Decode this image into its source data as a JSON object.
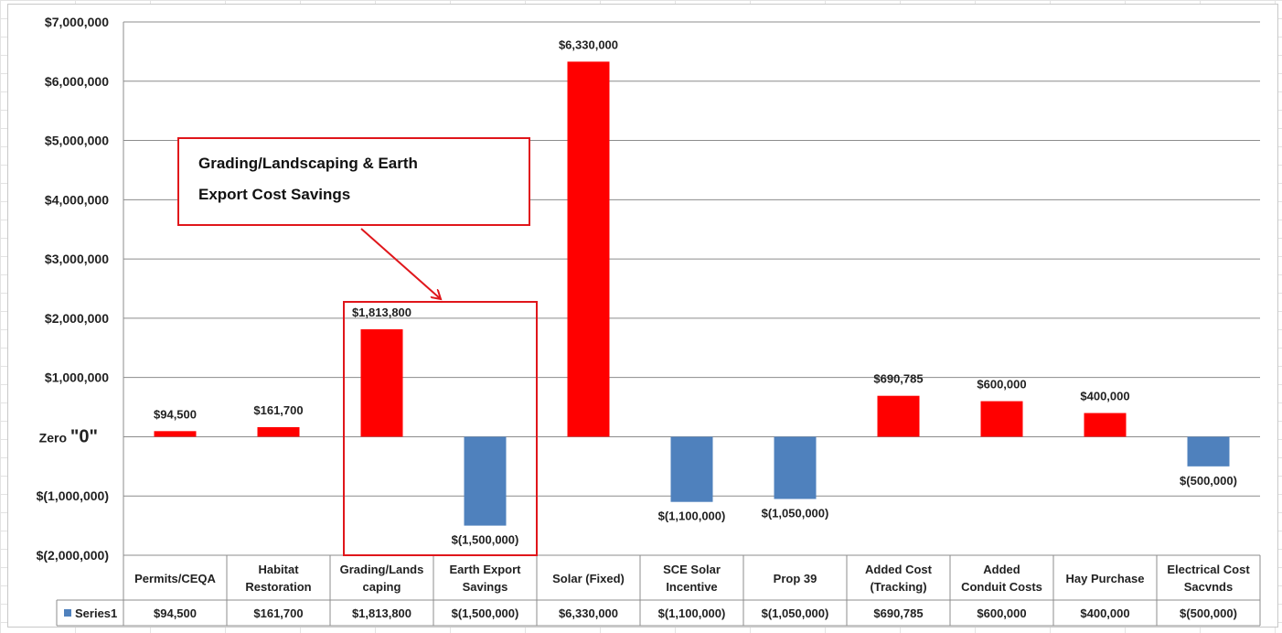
{
  "chart_data": {
    "type": "bar",
    "categories": [
      "Permits/CEQA",
      "Habitat Restoration",
      "Grading/Landscaping",
      "Earth Export Savings",
      "Solar (Fixed)",
      "SCE Solar Incentive",
      "Prop 39",
      "Added Cost (Tracking)",
      "Added Conduit Costs",
      "Hay Purchase",
      "Electrical Cost Sacvnds"
    ],
    "category_label_lines": [
      [
        "Permits/CEQA"
      ],
      [
        "Habitat",
        "Restoration"
      ],
      [
        "Grading/Lands",
        "caping"
      ],
      [
        "Earth Export",
        "Savings"
      ],
      [
        "Solar (Fixed)"
      ],
      [
        "SCE Solar",
        "Incentive"
      ],
      [
        "Prop 39"
      ],
      [
        "Added Cost",
        "(Tracking)"
      ],
      [
        "Added",
        "Conduit Costs"
      ],
      [
        "Hay Purchase"
      ],
      [
        "Electrical Cost",
        "Sacvnds"
      ]
    ],
    "series": [
      {
        "name": "Series1",
        "values": [
          94500,
          161700,
          1813800,
          -1500000,
          6330000,
          -1100000,
          -1050000,
          690785,
          600000,
          400000,
          -500000
        ]
      }
    ],
    "data_labels": [
      "$94,500",
      "$161,700",
      "$1,813,800",
      "$(1,500,000)",
      "$6,330,000",
      "$(1,100,000)",
      "$(1,050,000)",
      "$690,785",
      "$600,000",
      "$400,000",
      "$(500,000)"
    ],
    "ylim": [
      -2000000,
      7000000
    ],
    "yticks": [
      {
        "value": 7000000,
        "label": "$7,000,000"
      },
      {
        "value": 6000000,
        "label": "$6,000,000"
      },
      {
        "value": 5000000,
        "label": "$5,000,000"
      },
      {
        "value": 4000000,
        "label": "$4,000,000"
      },
      {
        "value": 3000000,
        "label": "$3,000,000"
      },
      {
        "value": 2000000,
        "label": "$2,000,000"
      },
      {
        "value": 1000000,
        "label": "$1,000,000"
      },
      {
        "value": 0,
        "label": "Zero \"0\""
      },
      {
        "value": -1000000,
        "label": "$(1,000,000)"
      },
      {
        "value": -2000000,
        "label": "$(2,000,000)"
      }
    ],
    "grid": true,
    "data_table": true,
    "colors": {
      "positive": "#ff0000",
      "negative": "#4f81bd",
      "highlight": "#e0161b"
    },
    "annotation": {
      "lines": [
        "Grading/Landscaping & Earth",
        "Export Cost Savings"
      ],
      "highlights_categories": [
        "Grading/Landscaping",
        "Earth Export Savings"
      ]
    }
  }
}
